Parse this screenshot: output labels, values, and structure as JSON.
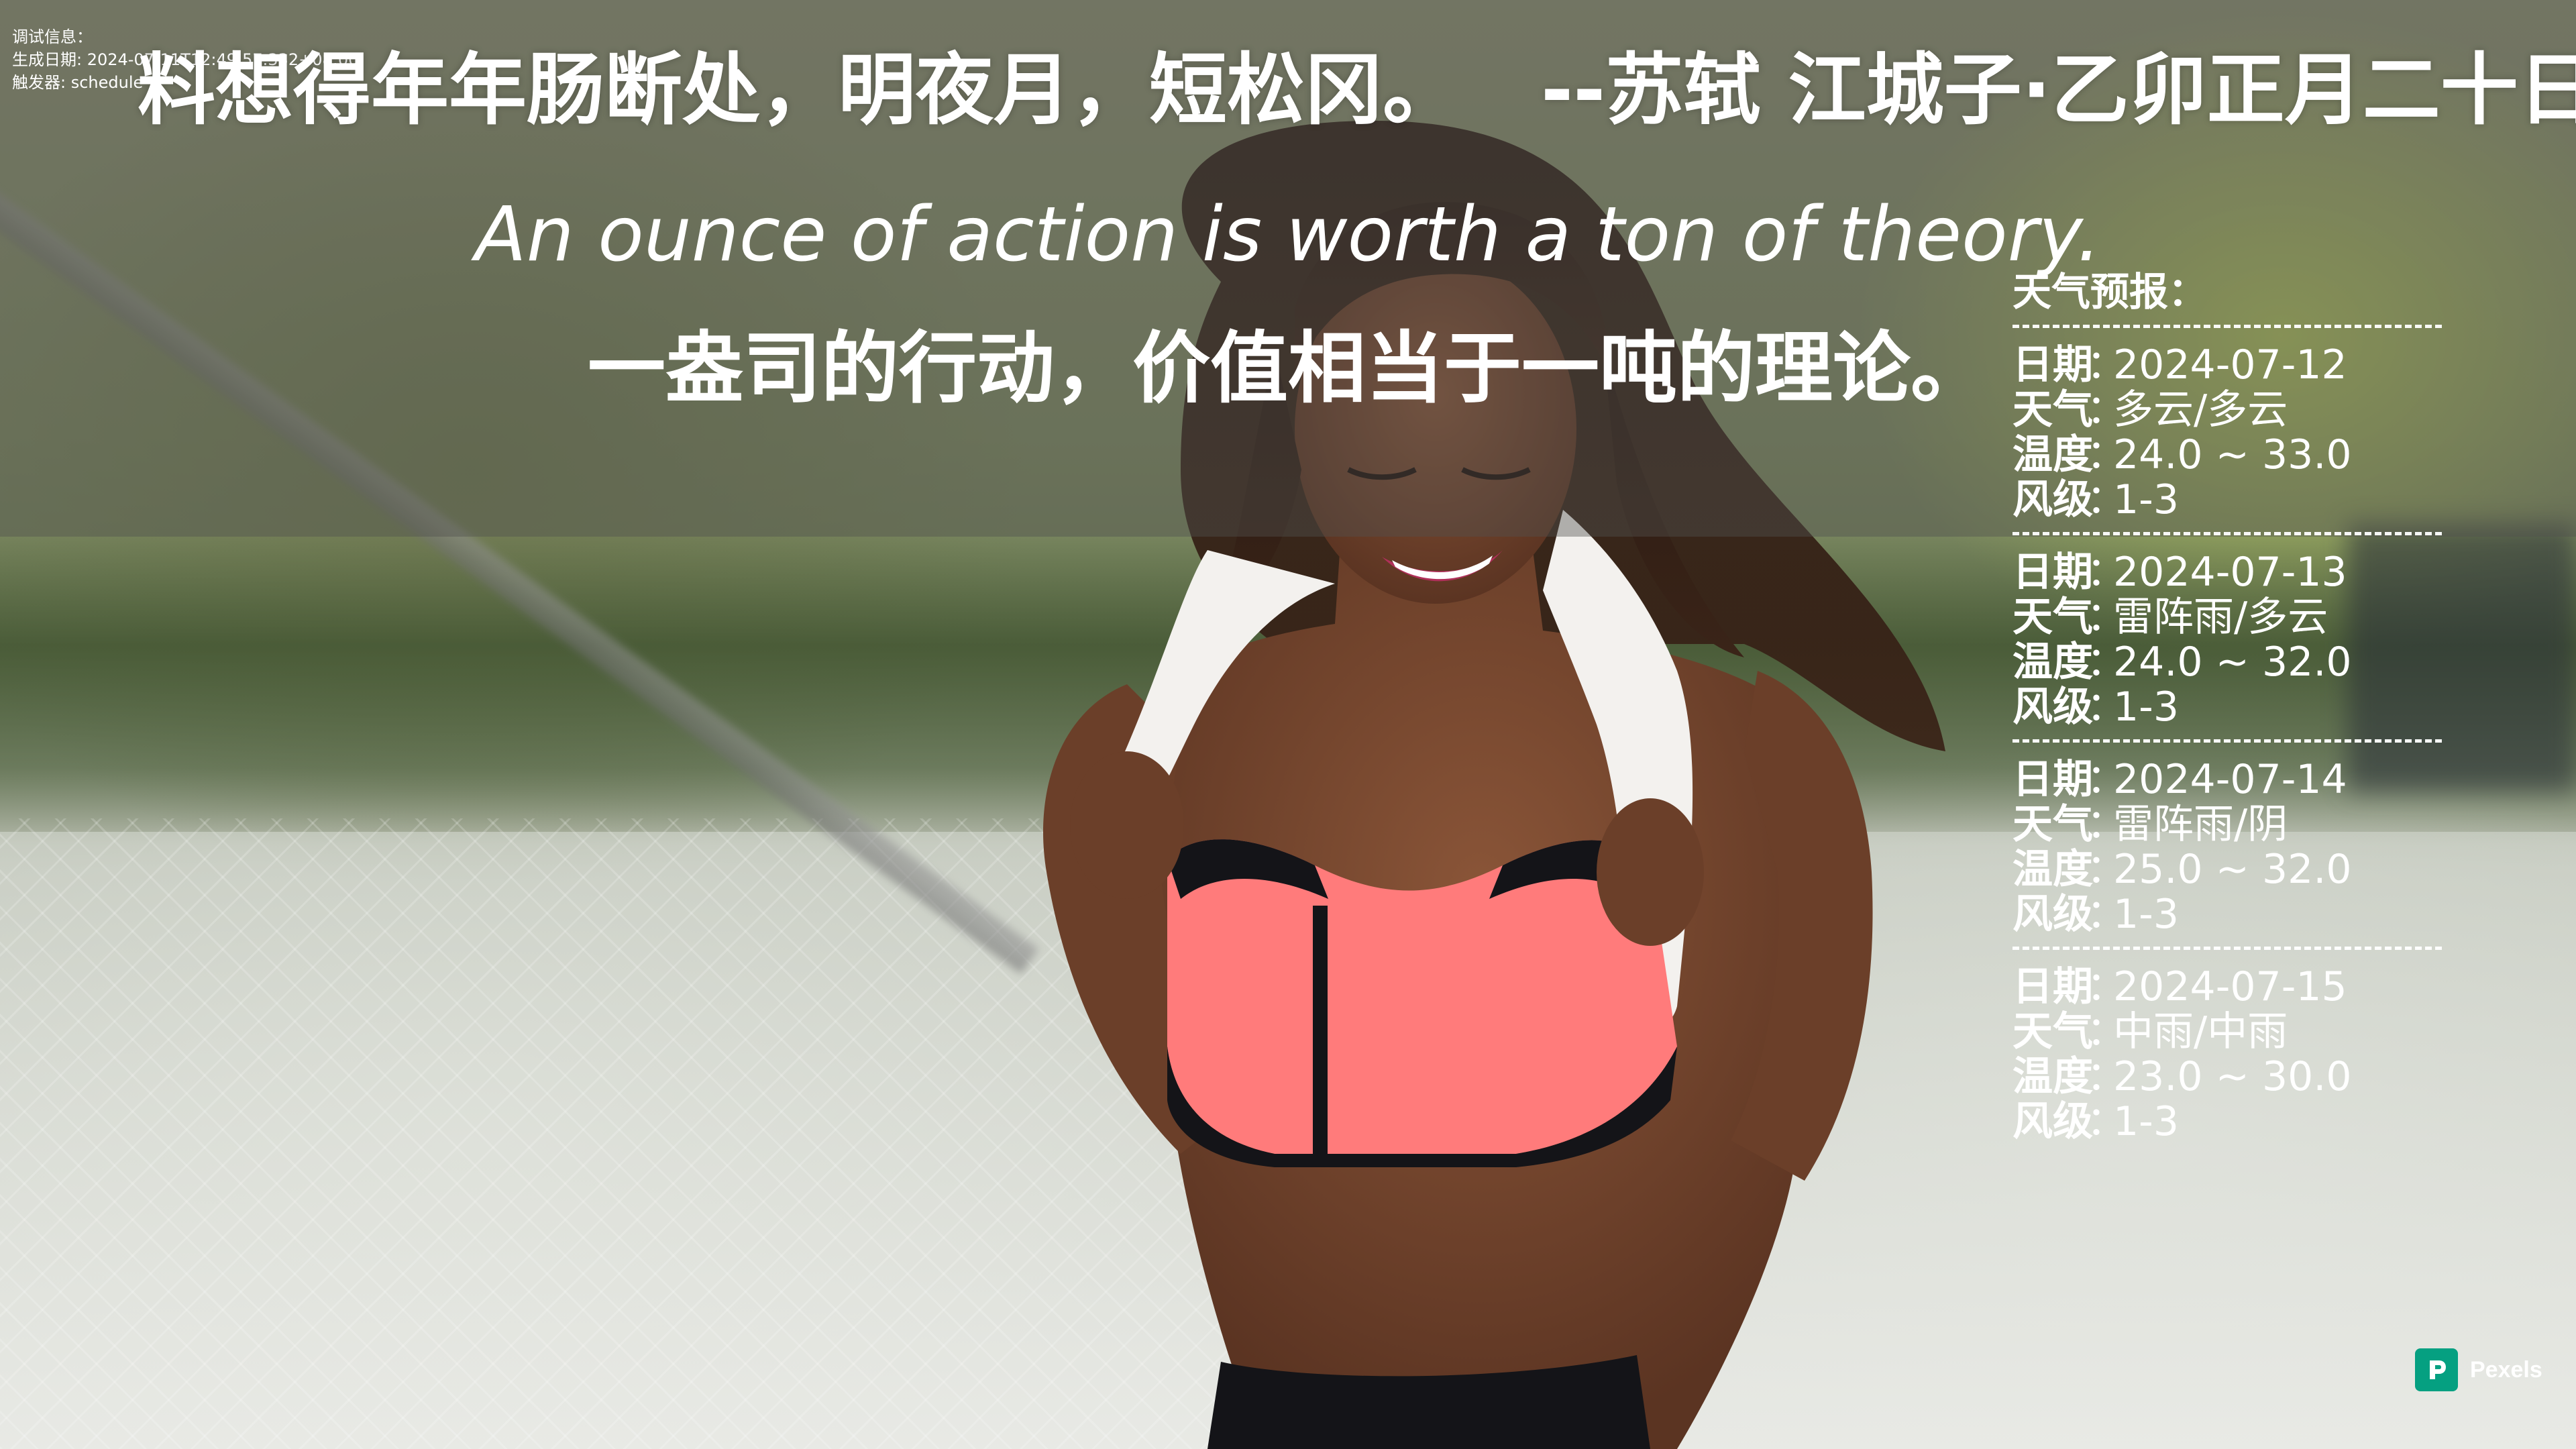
{
  "debug": {
    "label": "调试信息：",
    "generated_label": "生成日期",
    "generated_value": "2024-07-11T12:49:57.332+08:00",
    "trigger_label": "触发器",
    "trigger_value": "schedule"
  },
  "quotes": {
    "poem_line": "料想得年年肠断处，明夜月，短松冈。",
    "poem_source": "--苏轼 江城子·乙卯正月二十日夜记梦",
    "english": "An ounce of action is worth a ton of theory.",
    "chinese": "一盎司的行动，价值相当于一吨的理论。"
  },
  "weather": {
    "title": "天气预报：",
    "labels": {
      "date": "日期",
      "weather": "天气",
      "temperature": "温度",
      "wind": "风级",
      "separator": "："
    },
    "days": [
      {
        "date": "2024-07-12",
        "weather": "多云/多云",
        "temperature": "24.0 ~ 33.0",
        "wind": "1-3"
      },
      {
        "date": "2024-07-13",
        "weather": "雷阵雨/多云",
        "temperature": "24.0 ~ 32.0",
        "wind": "1-3"
      },
      {
        "date": "2024-07-14",
        "weather": "雷阵雨/阴",
        "temperature": "25.0 ~ 32.0",
        "wind": "1-3"
      },
      {
        "date": "2024-07-15",
        "weather": "中雨/中雨",
        "temperature": "23.0 ~ 30.0",
        "wind": "1-3"
      }
    ]
  },
  "credit": {
    "brand": "Pexels",
    "brand_color": "#05a081"
  },
  "icons": {
    "pexels": "pexels-logo-icon"
  }
}
